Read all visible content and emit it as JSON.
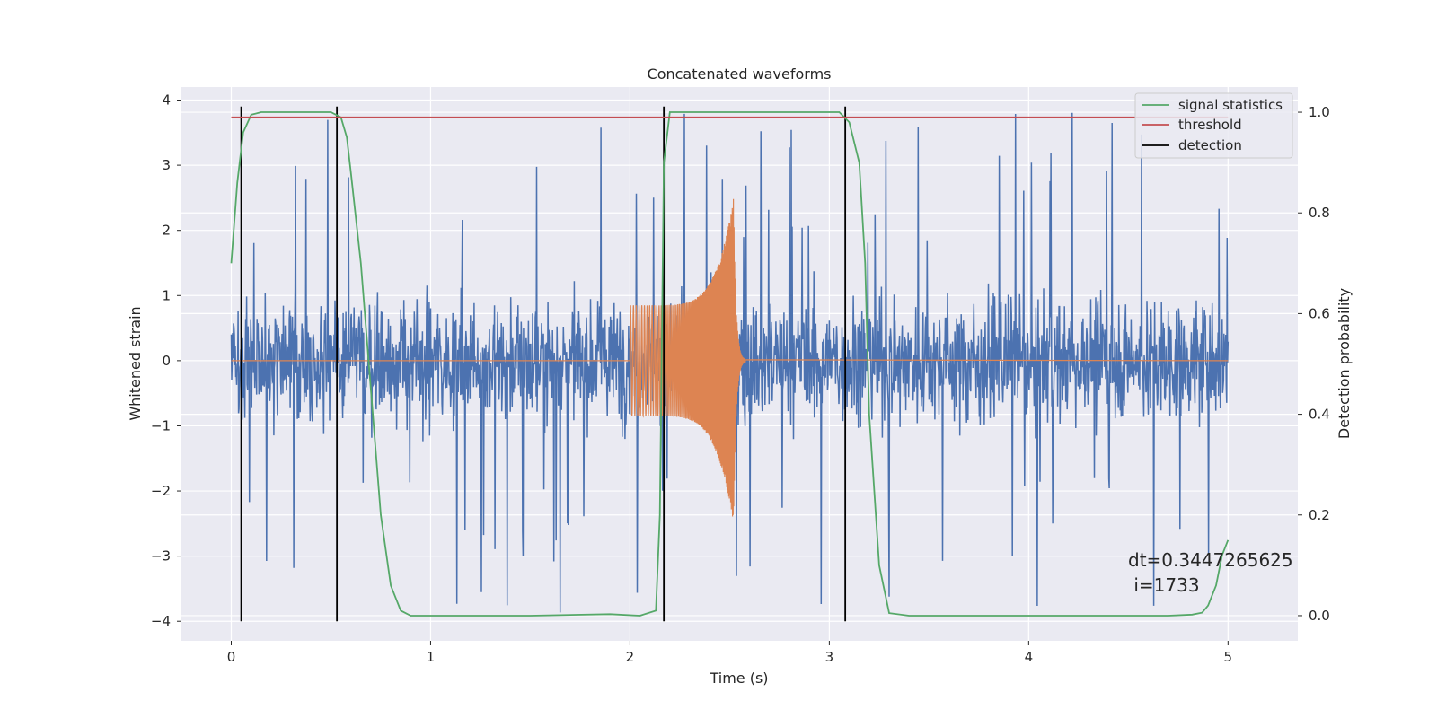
{
  "chart_data": {
    "type": "line",
    "title": "Concatenated waveforms",
    "xlabel": "Time (s)",
    "ylabel": "Whitened strain",
    "y2label": "Detection probability",
    "xlim": [
      -0.25,
      5.35
    ],
    "ylim": [
      -4.3,
      4.2
    ],
    "y2lim": [
      -0.05,
      1.05
    ],
    "xticks": [
      0,
      1,
      2,
      3,
      4,
      5
    ],
    "xtick_labels": [
      "0",
      "1",
      "2",
      "3",
      "4",
      "5"
    ],
    "yticks": [
      -4,
      -3,
      -2,
      -1,
      0,
      1,
      2,
      3,
      4
    ],
    "ytick_labels": [
      "−4",
      "−3",
      "−2",
      "−1",
      "0",
      "1",
      "2",
      "3",
      "4"
    ],
    "y2ticks": [
      0.0,
      0.2,
      0.4,
      0.6,
      0.8,
      1.0
    ],
    "y2tick_labels": [
      "0.0",
      "0.2",
      "0.4",
      "0.6",
      "0.8",
      "1.0"
    ],
    "grid": true,
    "legend_position": "top-right",
    "noise": {
      "x_start": 0.0,
      "x_end": 5.0,
      "sample_points": 2200,
      "typical_amplitude": 0.75,
      "peak_amplitude": 3.9,
      "color": "#4c72b0"
    },
    "injected_signal": {
      "x_start": 2.0,
      "x_merger": 2.52,
      "x_end": 5.0,
      "start_amplitude": 0.85,
      "peak_amplitude": 2.5,
      "color": "#dd8452"
    },
    "series": [
      {
        "name": "signal statistics",
        "axis": "right",
        "color": "#55a868",
        "x": [
          0.0,
          0.03,
          0.06,
          0.1,
          0.15,
          0.3,
          0.5,
          0.55,
          0.58,
          0.6,
          0.65,
          0.7,
          0.75,
          0.8,
          0.85,
          0.9,
          1.0,
          1.5,
          1.9,
          2.05,
          2.13,
          2.15,
          2.17,
          2.2,
          2.3,
          2.8,
          3.05,
          3.1,
          3.15,
          3.18,
          3.2,
          3.25,
          3.3,
          3.4,
          3.8,
          4.7,
          4.82,
          4.87,
          4.9,
          4.94,
          4.97,
          5.0
        ],
        "y": [
          0.7,
          0.86,
          0.96,
          0.995,
          1.0,
          1.0,
          1.0,
          0.99,
          0.95,
          0.88,
          0.7,
          0.45,
          0.2,
          0.06,
          0.01,
          0.0,
          0.0,
          0.0,
          0.003,
          0.0,
          0.01,
          0.2,
          0.9,
          1.0,
          1.0,
          1.0,
          1.0,
          0.98,
          0.9,
          0.7,
          0.4,
          0.1,
          0.005,
          0.0,
          0.0,
          0.0,
          0.002,
          0.006,
          0.02,
          0.06,
          0.12,
          0.15
        ]
      },
      {
        "name": "threshold",
        "axis": "right",
        "color": "#c44e52",
        "x": [
          0.0,
          5.0
        ],
        "y": [
          0.99,
          0.99
        ]
      }
    ],
    "detection": {
      "name": "detection",
      "color": "#000000",
      "x": [
        0.05,
        0.53,
        2.17,
        3.08
      ],
      "y_range": [
        -4.0,
        3.9
      ]
    },
    "annotation": {
      "line1": "dt=0.3447265625",
      "line2": " i=1733",
      "x": 4.52,
      "y": -3.2
    }
  },
  "colors": {
    "axes_bg": "#eaeaf2",
    "grid": "#ffffff",
    "text": "#262626"
  }
}
